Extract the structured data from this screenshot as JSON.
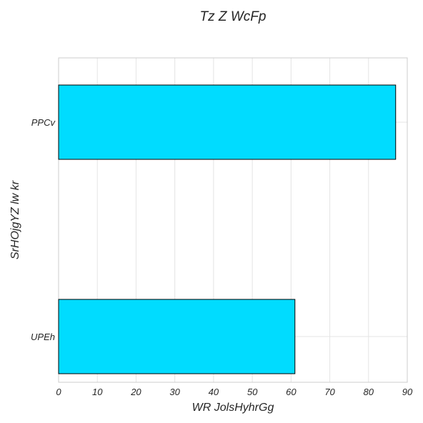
{
  "chart_data": {
    "type": "bar",
    "orientation": "horizontal",
    "title": "Tz Z WcFp",
    "xlabel": "WR JolsHyhrGg",
    "ylabel": "SrHOjgYZ lw kr",
    "categories": [
      "PPCv",
      "UPEh"
    ],
    "values": [
      87,
      61
    ],
    "xlim": [
      0,
      90
    ],
    "xticks": [
      "0",
      "10",
      "20",
      "30",
      "40",
      "50",
      "60",
      "70",
      "80",
      "90"
    ],
    "grid": true,
    "bar_color": "#00dcff",
    "bar_edge_color": "#000000"
  }
}
